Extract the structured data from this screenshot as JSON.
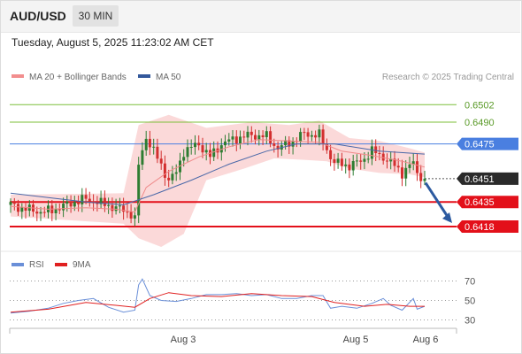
{
  "header": {
    "pair": "AUD/USD",
    "timeframe": "30 MIN"
  },
  "timestamp": "Tuesday, August 5, 2025 11:23:02 AM CET",
  "legend": [
    {
      "label": "MA 20 + Bollinger Bands",
      "color": "#f28e8e"
    },
    {
      "label": "MA 50",
      "color": "#33589b"
    }
  ],
  "source": "Research © 2025 Trading Central",
  "sub_legend": [
    {
      "label": "RSI",
      "color": "#6a8fd8"
    },
    {
      "label": "9MA",
      "color": "#e02020"
    }
  ],
  "x_axis": {
    "labels": [
      "Aug 3",
      "Aug 5",
      "Aug 6"
    ]
  },
  "chart_data": [
    {
      "type": "candlestick",
      "title": "",
      "xlabel": "",
      "ylabel": "",
      "ylim": [
        0.6404,
        0.6515
      ],
      "series": [
        {
          "name": "MA 20 + Bollinger Bands",
          "color": "#f28e8e"
        },
        {
          "name": "MA 50",
          "color": "#33589b"
        }
      ],
      "levels": [
        {
          "value": 0.6502,
          "label": "0.6502",
          "kind": "resistance",
          "color": "#7cbf3a"
        },
        {
          "value": 0.649,
          "label": "0.6490",
          "kind": "resistance",
          "color": "#7cbf3a"
        },
        {
          "value": 0.6475,
          "label": "0.6475",
          "kind": "pivot",
          "color": "#4a7fe0"
        },
        {
          "value": 0.6451,
          "label": "0.6451",
          "kind": "last-price",
          "color": "#2a2a2a"
        },
        {
          "value": 0.6435,
          "label": "0.6435",
          "kind": "support",
          "color": "#e3101a"
        },
        {
          "value": 0.6418,
          "label": "0.6418",
          "kind": "support",
          "color": "#e3101a"
        }
      ],
      "forecast_arrow": {
        "from": 0.645,
        "to": 0.6418,
        "color": "#2c5aa0"
      },
      "candle_colors": {
        "up": "#2e7d32",
        "down": "#d32f2f"
      },
      "price_path": [
        [
          0,
          0.6433
        ],
        [
          4,
          0.643
        ],
        [
          9,
          0.6428
        ],
        [
          13,
          0.6431
        ],
        [
          17,
          0.6435
        ],
        [
          20,
          0.6437
        ],
        [
          24,
          0.6434
        ],
        [
          28,
          0.6431
        ],
        [
          32,
          0.6427
        ],
        [
          33,
          0.6423
        ],
        [
          34,
          0.646
        ],
        [
          36,
          0.648
        ],
        [
          38,
          0.647
        ],
        [
          40,
          0.646
        ],
        [
          42,
          0.645
        ],
        [
          44,
          0.6455
        ],
        [
          46,
          0.647
        ],
        [
          50,
          0.6475
        ],
        [
          53,
          0.6466
        ],
        [
          56,
          0.6475
        ],
        [
          60,
          0.6479
        ],
        [
          64,
          0.6481
        ],
        [
          68,
          0.648
        ],
        [
          71,
          0.6472
        ],
        [
          75,
          0.6477
        ],
        [
          78,
          0.6482
        ],
        [
          82,
          0.6481
        ],
        [
          84,
          0.6471
        ],
        [
          86,
          0.6462
        ],
        [
          90,
          0.646
        ],
        [
          93,
          0.6463
        ],
        [
          96,
          0.647
        ],
        [
          99,
          0.6466
        ],
        [
          102,
          0.646
        ],
        [
          104,
          0.6455
        ],
        [
          107,
          0.6462
        ],
        [
          108,
          0.6455
        ],
        [
          110,
          0.6451
        ]
      ],
      "ma20_path": [
        [
          0,
          0.6432
        ],
        [
          10,
          0.643
        ],
        [
          20,
          0.6431
        ],
        [
          28,
          0.643
        ],
        [
          33,
          0.6428
        ],
        [
          36,
          0.6445
        ],
        [
          42,
          0.6456
        ],
        [
          50,
          0.6466
        ],
        [
          58,
          0.6473
        ],
        [
          66,
          0.6478
        ],
        [
          74,
          0.6477
        ],
        [
          82,
          0.6476
        ],
        [
          88,
          0.647
        ],
        [
          96,
          0.6467
        ],
        [
          104,
          0.6463
        ],
        [
          110,
          0.6459
        ]
      ],
      "ma50_path": [
        [
          0,
          0.6441
        ],
        [
          10,
          0.6438
        ],
        [
          20,
          0.6435
        ],
        [
          30,
          0.6433
        ],
        [
          38,
          0.644
        ],
        [
          48,
          0.645
        ],
        [
          58,
          0.6461
        ],
        [
          68,
          0.647
        ],
        [
          76,
          0.6475
        ],
        [
          86,
          0.6475
        ],
        [
          98,
          0.647
        ],
        [
          110,
          0.6468
        ]
      ],
      "band_upper": [
        [
          0,
          0.644
        ],
        [
          30,
          0.6441
        ],
        [
          34,
          0.6488
        ],
        [
          42,
          0.6495
        ],
        [
          52,
          0.6486
        ],
        [
          64,
          0.649
        ],
        [
          74,
          0.6488
        ],
        [
          82,
          0.6491
        ],
        [
          90,
          0.6479
        ],
        [
          98,
          0.6477
        ],
        [
          106,
          0.6472
        ],
        [
          110,
          0.6469
        ]
      ],
      "band_lower": [
        [
          0,
          0.6425
        ],
        [
          30,
          0.642
        ],
        [
          34,
          0.641
        ],
        [
          40,
          0.6404
        ],
        [
          46,
          0.6413
        ],
        [
          52,
          0.645
        ],
        [
          62,
          0.6458
        ],
        [
          70,
          0.6465
        ],
        [
          78,
          0.6464
        ],
        [
          84,
          0.6463
        ],
        [
          90,
          0.6458
        ],
        [
          98,
          0.6455
        ],
        [
          106,
          0.6454
        ],
        [
          110,
          0.6452
        ]
      ]
    },
    {
      "type": "line",
      "title": "",
      "xlabel": "",
      "ylabel": "",
      "ylim": [
        25,
        75
      ],
      "y_ticks": [
        30,
        50,
        70
      ],
      "series": [
        {
          "name": "RSI",
          "color": "#6a8fd8",
          "values": [
            [
              0,
              37
            ],
            [
              5,
              39
            ],
            [
              10,
              42
            ],
            [
              14,
              47
            ],
            [
              18,
              50
            ],
            [
              22,
              52
            ],
            [
              26,
              43
            ],
            [
              30,
              38
            ],
            [
              33,
              40
            ],
            [
              34,
              66
            ],
            [
              35,
              72
            ],
            [
              37,
              55
            ],
            [
              40,
              50
            ],
            [
              44,
              49
            ],
            [
              48,
              52
            ],
            [
              52,
              56
            ],
            [
              56,
              56
            ],
            [
              60,
              57
            ],
            [
              64,
              55
            ],
            [
              68,
              56
            ],
            [
              72,
              52
            ],
            [
              76,
              52
            ],
            [
              80,
              55
            ],
            [
              83,
              55
            ],
            [
              85,
              42
            ],
            [
              88,
              44
            ],
            [
              92,
              42
            ],
            [
              96,
              47
            ],
            [
              99,
              52
            ],
            [
              101,
              45
            ],
            [
              104,
              40
            ],
            [
              107,
              52
            ],
            [
              108,
              41
            ],
            [
              110,
              44
            ]
          ]
        },
        {
          "name": "9MA",
          "color": "#e02020",
          "values": [
            [
              0,
              38
            ],
            [
              10,
              41
            ],
            [
              20,
              48
            ],
            [
              28,
              45
            ],
            [
              33,
              43
            ],
            [
              37,
              52
            ],
            [
              42,
              58
            ],
            [
              48,
              55
            ],
            [
              56,
              54
            ],
            [
              64,
              57
            ],
            [
              72,
              55
            ],
            [
              80,
              54
            ],
            [
              86,
              48
            ],
            [
              94,
              44
            ],
            [
              100,
              46
            ],
            [
              106,
              44
            ],
            [
              110,
              44
            ]
          ]
        }
      ]
    }
  ]
}
